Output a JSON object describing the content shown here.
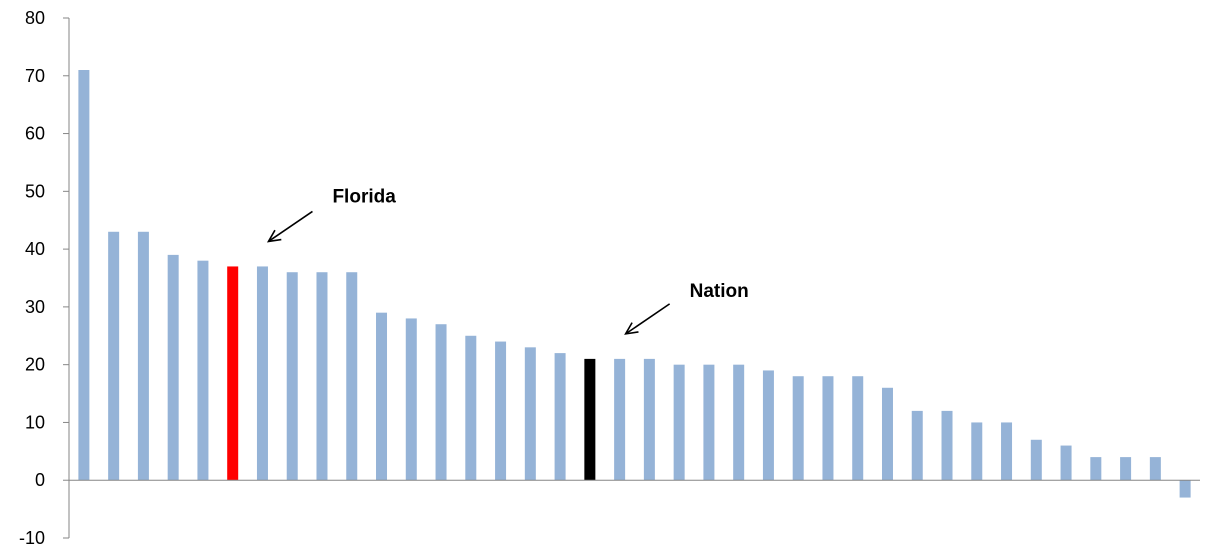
{
  "chart_data": {
    "type": "bar",
    "title": "",
    "xlabel": "",
    "ylabel": "",
    "ylim": [
      -10,
      80
    ],
    "yticks": [
      -10,
      0,
      10,
      20,
      30,
      40,
      50,
      60,
      70,
      80
    ],
    "grid": false,
    "legend": "none",
    "values": [
      71,
      43,
      43,
      39,
      38,
      37,
      37,
      36,
      36,
      36,
      29,
      28,
      27,
      25,
      24,
      23,
      22,
      21,
      21,
      21,
      20,
      20,
      20,
      19,
      18,
      18,
      18,
      16,
      12,
      12,
      10,
      10,
      7,
      6,
      4,
      4,
      4,
      -3
    ],
    "highlight": {
      "florida_index": 5,
      "nation_index": 17
    },
    "colors": {
      "default": "#95b3d7",
      "florida": "#ff0000",
      "nation": "#000000",
      "axis": "#868686"
    },
    "annotations": [
      {
        "label": "Florida",
        "bar_index": 6
      },
      {
        "label": "Nation",
        "bar_index": 18
      }
    ]
  }
}
